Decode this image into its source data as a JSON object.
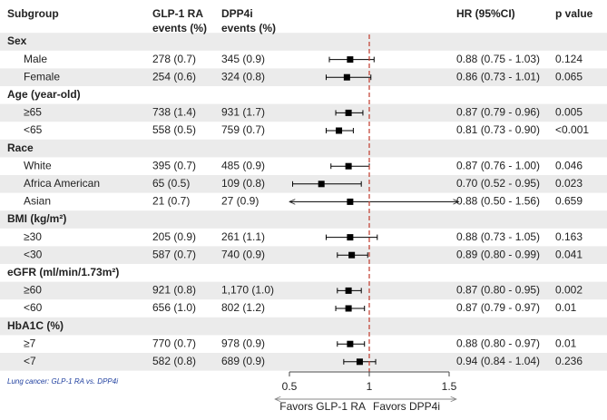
{
  "chart_data": {
    "type": "forest",
    "headers": {
      "subgroup": "Subgroup",
      "glp1": [
        "GLP-1 RA",
        "events (%)"
      ],
      "dpp4i": [
        "DPP4i",
        "events (%)"
      ],
      "hr": "HR (95%CI)",
      "p": "p value"
    },
    "rows": [
      {
        "label": "Sex"
      },
      {
        "label": "Male",
        "glp1": "278 (0.7)",
        "dpp4i": "345 (0.9)",
        "hr": 0.88,
        "lo": 0.75,
        "hi": 1.03,
        "hr_text": "0.88 (0.75 - 1.03)",
        "p": "0.124"
      },
      {
        "label": "Female",
        "glp1": "254 (0.6)",
        "dpp4i": "324 (0.8)",
        "hr": 0.86,
        "lo": 0.73,
        "hi": 1.01,
        "hr_text": "0.86 (0.73 - 1.01)",
        "p": "0.065"
      },
      {
        "label": "Age (year-old)"
      },
      {
        "label": "≥65",
        "glp1": "738 (1.4)",
        "dpp4i": "931 (1.7)",
        "hr": 0.87,
        "lo": 0.79,
        "hi": 0.96,
        "hr_text": "0.87 (0.79 - 0.96)",
        "p": "0.005"
      },
      {
        "label": "<65",
        "glp1": "558 (0.5)",
        "dpp4i": "759 (0.7)",
        "hr": 0.81,
        "lo": 0.73,
        "hi": 0.9,
        "hr_text": "0.81 (0.73 - 0.90)",
        "p": "<0.001"
      },
      {
        "label": "Race"
      },
      {
        "label": "White",
        "glp1": "395 (0.7)",
        "dpp4i": "485 (0.9)",
        "hr": 0.87,
        "lo": 0.76,
        "hi": 1.0,
        "hr_text": "0.87 (0.76 - 1.00)",
        "p": "0.046"
      },
      {
        "label": "Africa American",
        "glp1": "65 (0.5)",
        "dpp4i": "109 (0.8)",
        "hr": 0.7,
        "lo": 0.52,
        "hi": 0.95,
        "hr_text": "0.70 (0.52 - 0.95)",
        "p": "0.023"
      },
      {
        "label": "Asian",
        "glp1": "21 (0.7)",
        "dpp4i": "27 (0.9)",
        "hr": 0.88,
        "lo": 0.5,
        "hi": 1.56,
        "hr_text": "0.88 (0.50 - 1.56)",
        "p": "0.659"
      },
      {
        "label": "BMI (kg/m²)"
      },
      {
        "label": "≥30",
        "glp1": "205 (0.9)",
        "dpp4i": "261 (1.1)",
        "hr": 0.88,
        "lo": 0.73,
        "hi": 1.05,
        "hr_text": "0.88 (0.73 - 1.05)",
        "p": "0.163"
      },
      {
        "label": "<30",
        "glp1": "587 (0.7)",
        "dpp4i": "740 (0.9)",
        "hr": 0.89,
        "lo": 0.8,
        "hi": 0.99,
        "hr_text": "0.89 (0.80 - 0.99)",
        "p": "0.041"
      },
      {
        "label": "eGFR (ml/min/1.73m²)"
      },
      {
        "label": "≥60",
        "glp1": "921 (0.8)",
        "dpp4i": "1,170 (1.0)",
        "hr": 0.87,
        "lo": 0.8,
        "hi": 0.95,
        "hr_text": "0.87 (0.80 - 0.95)",
        "p": "0.002"
      },
      {
        "label": "<60",
        "glp1": "656 (1.0)",
        "dpp4i": "802 (1.2)",
        "hr": 0.87,
        "lo": 0.79,
        "hi": 0.97,
        "hr_text": "0.87 (0.79 - 0.97)",
        "p": "0.01"
      },
      {
        "label": "HbA1C (%)"
      },
      {
        "label": "≥7",
        "glp1": "770 (0.7)",
        "dpp4i": "978 (0.9)",
        "hr": 0.88,
        "lo": 0.8,
        "hi": 0.97,
        "hr_text": "0.88 (0.80 - 0.97)",
        "p": "0.01"
      },
      {
        "label": "<7",
        "glp1": "582 (0.8)",
        "dpp4i": "689 (0.9)",
        "hr": 0.94,
        "lo": 0.84,
        "hi": 1.04,
        "hr_text": "0.94 (0.84 - 1.04)",
        "p": "0.236"
      }
    ],
    "xlim": [
      0.5,
      1.5
    ],
    "xticks": [
      0.5,
      1,
      1.5
    ],
    "reference": 1,
    "reference_color": "#c0392b",
    "marker_color": "#000000",
    "band_color": "#ebebeb",
    "favors_left": "Favors GLP-1 RA",
    "favors_right": "Favors DPP4i",
    "note": "Lung cancer: GLP-1 RA vs. DPP4i"
  }
}
